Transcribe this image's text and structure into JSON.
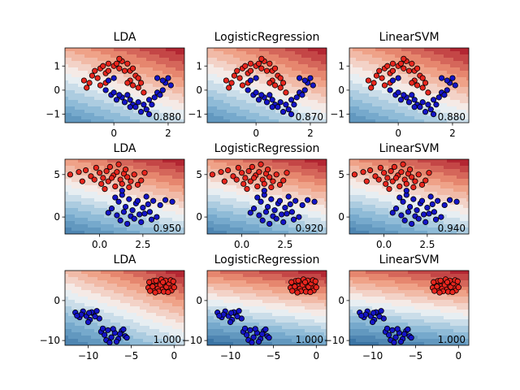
{
  "chart_data": [
    {
      "type": "contour-scatter",
      "row": 0,
      "col": 0,
      "title": "LDA",
      "score": "0.880",
      "xlim": [
        -1.8,
        2.6
      ],
      "ylim": [
        -1.35,
        1.75
      ],
      "xticks": [
        0,
        2
      ],
      "xticklabels": [
        "0",
        "2"
      ],
      "yticks": [
        -1,
        0,
        1
      ],
      "yticklabels": [
        "−1",
        "0",
        "1"
      ],
      "boundary": {
        "nx": 0.34,
        "ny": 0.94,
        "c": 0.05
      },
      "class_colors": {
        "red": "#e8261e",
        "blue": "#1414c8"
      }
    },
    {
      "type": "contour-scatter",
      "row": 0,
      "col": 1,
      "title": "LogisticRegression",
      "score": "0.870",
      "xlim": [
        -1.8,
        2.6
      ],
      "ylim": [
        -1.35,
        1.75
      ],
      "xticks": [
        0,
        2
      ],
      "xticklabels": [
        "0",
        "2"
      ],
      "yticks": [
        -1,
        0,
        1
      ],
      "yticklabels": [
        "−1",
        "0",
        "1"
      ],
      "boundary": {
        "nx": 0.36,
        "ny": 0.93,
        "c": 0.05
      },
      "class_colors": {
        "red": "#e8261e",
        "blue": "#1414c8"
      }
    },
    {
      "type": "contour-scatter",
      "row": 0,
      "col": 2,
      "title": "LinearSVM",
      "score": "0.880",
      "xlim": [
        -1.8,
        2.6
      ],
      "ylim": [
        -1.35,
        1.75
      ],
      "xticks": [
        0,
        2
      ],
      "xticklabels": [
        "0",
        "2"
      ],
      "yticks": [
        -1,
        0,
        1
      ],
      "yticklabels": [
        "−1",
        "0",
        "1"
      ],
      "boundary": {
        "nx": 0.35,
        "ny": 0.94,
        "c": 0.05
      },
      "class_colors": {
        "red": "#e8261e",
        "blue": "#1414c8"
      }
    },
    {
      "type": "contour-scatter",
      "row": 1,
      "col": 0,
      "title": "LDA",
      "score": "0.950",
      "xlim": [
        -2.0,
        4.9
      ],
      "ylim": [
        -2.0,
        6.8
      ],
      "xticks": [
        0,
        2.5
      ],
      "xticklabels": [
        "0.0",
        "2.5"
      ],
      "yticks": [
        0,
        5
      ],
      "yticklabels": [
        "0",
        "5"
      ],
      "boundary": {
        "nx": 0.45,
        "ny": 0.89,
        "c": 2.4
      },
      "class_colors": {
        "red": "#e8261e",
        "blue": "#1414c8"
      }
    },
    {
      "type": "contour-scatter",
      "row": 1,
      "col": 1,
      "title": "LogisticRegression",
      "score": "0.920",
      "xlim": [
        -2.0,
        4.9
      ],
      "ylim": [
        -2.0,
        6.8
      ],
      "xticks": [
        0,
        2.5
      ],
      "xticklabels": [
        "0.0",
        "2.5"
      ],
      "yticks": [
        0,
        5
      ],
      "yticklabels": [
        "0",
        "5"
      ],
      "boundary": {
        "nx": 0.42,
        "ny": 0.91,
        "c": 2.4
      },
      "class_colors": {
        "red": "#e8261e",
        "blue": "#1414c8"
      }
    },
    {
      "type": "contour-scatter",
      "row": 1,
      "col": 2,
      "title": "LinearSVM",
      "score": "0.940",
      "xlim": [
        -2.0,
        4.9
      ],
      "ylim": [
        -2.0,
        6.8
      ],
      "xticks": [
        0,
        2.5
      ],
      "xticklabels": [
        "0.0",
        "2.5"
      ],
      "yticks": [
        0,
        5
      ],
      "yticklabels": [
        "0",
        "5"
      ],
      "boundary": {
        "nx": 0.44,
        "ny": 0.9,
        "c": 2.4
      },
      "class_colors": {
        "red": "#e8261e",
        "blue": "#1414c8"
      }
    },
    {
      "type": "contour-scatter",
      "row": 2,
      "col": 0,
      "title": "LDA",
      "score": "1.000",
      "xlim": [
        -12.7,
        1.2
      ],
      "ylim": [
        -11.2,
        7.5
      ],
      "xticks": [
        -10,
        -5,
        0
      ],
      "xticklabels": [
        "−10",
        "−5",
        "0"
      ],
      "yticks": [
        -10,
        0
      ],
      "yticklabels": [
        "−10",
        "0"
      ],
      "boundary": {
        "nx": 0.6,
        "ny": 0.8,
        "c": -5.5
      },
      "class_colors": {
        "red": "#e8261e",
        "blue": "#1414c8"
      }
    },
    {
      "type": "contour-scatter",
      "row": 2,
      "col": 1,
      "title": "LogisticRegression",
      "score": "1.000",
      "xlim": [
        -12.7,
        1.2
      ],
      "ylim": [
        -11.2,
        7.5
      ],
      "xticks": [
        -10,
        -5,
        0
      ],
      "xticklabels": [
        "−10",
        "−5",
        "0"
      ],
      "yticks": [
        -10,
        0
      ],
      "yticklabels": [
        "−10",
        "0"
      ],
      "boundary": {
        "nx": 0.3,
        "ny": 0.95,
        "c": -3.5
      },
      "class_colors": {
        "red": "#e8261e",
        "blue": "#1414c8"
      }
    },
    {
      "type": "contour-scatter",
      "row": 2,
      "col": 2,
      "title": "LinearSVM",
      "score": "1.000",
      "xlim": [
        -12.7,
        1.2
      ],
      "ylim": [
        -11.2,
        7.5
      ],
      "xticks": [
        -10,
        -5,
        0
      ],
      "xticklabels": [
        "−10",
        "−5",
        "0"
      ],
      "yticks": [
        -10,
        0
      ],
      "yticklabels": [
        "−10",
        "0"
      ],
      "boundary": {
        "nx": 0.28,
        "ny": 0.96,
        "c": -3.2
      },
      "class_colors": {
        "red": "#e8261e",
        "blue": "#1414c8"
      }
    }
  ],
  "datasets": [
    {
      "red": [
        [
          -1.1,
          0.4
        ],
        [
          -0.9,
          0.3
        ],
        [
          -0.8,
          0.6
        ],
        [
          -0.7,
          0.8
        ],
        [
          -0.5,
          0.9
        ],
        [
          -0.4,
          1.0
        ],
        [
          -0.3,
          0.7
        ],
        [
          -0.2,
          1.1
        ],
        [
          0.0,
          1.0
        ],
        [
          0.1,
          1.1
        ],
        [
          0.2,
          0.9
        ],
        [
          0.3,
          1.2
        ],
        [
          0.5,
          1.1
        ],
        [
          0.6,
          0.8
        ],
        [
          0.7,
          0.9
        ],
        [
          0.8,
          0.6
        ],
        [
          0.9,
          0.5
        ],
        [
          1.0,
          0.3
        ],
        [
          0.9,
          0.1
        ],
        [
          1.1,
          -0.1
        ],
        [
          -0.6,
          0.5
        ],
        [
          -0.2,
          0.8
        ],
        [
          0.4,
          0.8
        ],
        [
          0.6,
          0.4
        ],
        [
          0.7,
          0.2
        ],
        [
          0.2,
          1.3
        ],
        [
          -1.0,
          0.1
        ],
        [
          0.5,
          0.3
        ],
        [
          -0.5,
          0.2
        ],
        [
          -0.3,
          0.3
        ]
      ],
      "blue": [
        [
          -0.3,
          0.0
        ],
        [
          -0.1,
          -0.2
        ],
        [
          0.0,
          -0.1
        ],
        [
          0.1,
          -0.4
        ],
        [
          0.3,
          -0.3
        ],
        [
          0.4,
          -0.5
        ],
        [
          0.6,
          -0.4
        ],
        [
          0.7,
          -0.6
        ],
        [
          0.9,
          -0.5
        ],
        [
          1.1,
          -0.6
        ],
        [
          1.3,
          -0.4
        ],
        [
          1.5,
          -0.3
        ],
        [
          1.6,
          -0.1
        ],
        [
          1.8,
          0.0
        ],
        [
          1.9,
          0.3
        ],
        [
          2.0,
          0.5
        ],
        [
          1.8,
          0.4
        ],
        [
          1.7,
          -0.2
        ],
        [
          1.4,
          -0.6
        ],
        [
          1.2,
          -0.8
        ],
        [
          0.8,
          -0.7
        ],
        [
          0.2,
          -0.2
        ],
        [
          0.5,
          -0.2
        ],
        [
          -0.2,
          0.4
        ],
        [
          0.0,
          0.5
        ],
        [
          1.6,
          0.5
        ],
        [
          2.1,
          0.2
        ],
        [
          1.0,
          -0.9
        ],
        [
          1.3,
          -1.0
        ],
        [
          0.6,
          -0.7
        ]
      ]
    },
    {
      "red": [
        [
          -1.7,
          5.0
        ],
        [
          -1.2,
          5.3
        ],
        [
          -0.8,
          5.5
        ],
        [
          -0.5,
          4.8
        ],
        [
          -0.2,
          5.8
        ],
        [
          0.0,
          5.2
        ],
        [
          0.2,
          4.6
        ],
        [
          0.4,
          5.4
        ],
        [
          0.6,
          5.9
        ],
        [
          0.8,
          4.9
        ],
        [
          1.0,
          5.3
        ],
        [
          1.2,
          4.4
        ],
        [
          1.4,
          5.1
        ],
        [
          1.6,
          4.7
        ],
        [
          1.8,
          4.2
        ],
        [
          2.0,
          5.0
        ],
        [
          2.2,
          3.8
        ],
        [
          0.1,
          3.9
        ],
        [
          0.5,
          4.2
        ],
        [
          0.9,
          3.6
        ],
        [
          1.3,
          3.9
        ],
        [
          -0.3,
          4.4
        ],
        [
          1.7,
          3.5
        ],
        [
          2.4,
          4.3
        ],
        [
          0.7,
          4.6
        ],
        [
          0.3,
          3.3
        ],
        [
          1.1,
          6.2
        ],
        [
          1.5,
          5.6
        ],
        [
          -1.0,
          4.2
        ],
        [
          2.6,
          5.2
        ]
      ],
      "blue": [
        [
          0.9,
          2.3
        ],
        [
          1.1,
          1.8
        ],
        [
          1.3,
          2.6
        ],
        [
          1.5,
          1.2
        ],
        [
          1.7,
          2.1
        ],
        [
          1.9,
          0.8
        ],
        [
          2.1,
          1.6
        ],
        [
          2.3,
          0.3
        ],
        [
          2.5,
          1.1
        ],
        [
          2.7,
          2.4
        ],
        [
          2.9,
          0.6
        ],
        [
          3.1,
          1.9
        ],
        [
          3.3,
          0.0
        ],
        [
          3.5,
          1.4
        ],
        [
          0.7,
          1.0
        ],
        [
          1.0,
          0.2
        ],
        [
          1.2,
          -0.4
        ],
        [
          1.4,
          0.6
        ],
        [
          1.6,
          -0.8
        ],
        [
          1.8,
          0.1
        ],
        [
          2.0,
          -0.2
        ],
        [
          2.2,
          1.9
        ],
        [
          2.4,
          -0.6
        ],
        [
          2.6,
          0.4
        ],
        [
          2.8,
          1.5
        ],
        [
          3.0,
          -0.3
        ],
        [
          0.5,
          0.5
        ],
        [
          3.8,
          2.0
        ],
        [
          4.2,
          1.8
        ],
        [
          1.3,
          3.1
        ]
      ]
    },
    {
      "red": [
        [
          -3.0,
          3.2
        ],
        [
          -2.6,
          4.1
        ],
        [
          -2.3,
          2.8
        ],
        [
          -2.0,
          3.6
        ],
        [
          -1.7,
          4.5
        ],
        [
          -1.4,
          2.9
        ],
        [
          -1.1,
          3.8
        ],
        [
          -0.8,
          4.7
        ],
        [
          -0.5,
          3.1
        ],
        [
          -0.2,
          4.0
        ],
        [
          -2.8,
          2.4
        ],
        [
          -2.4,
          4.9
        ],
        [
          -1.9,
          3.0
        ],
        [
          -1.5,
          5.3
        ],
        [
          -1.2,
          2.2
        ],
        [
          -0.9,
          3.4
        ],
        [
          -0.6,
          4.3
        ],
        [
          -0.3,
          2.5
        ],
        [
          -2.1,
          5.0
        ],
        [
          -1.6,
          3.9
        ],
        [
          -1.0,
          5.0
        ],
        [
          -0.4,
          5.1
        ],
        [
          -2.5,
          3.5
        ],
        [
          -0.7,
          2.1
        ],
        [
          -1.8,
          2.3
        ],
        [
          0.0,
          3.3
        ],
        [
          -2.9,
          4.6
        ],
        [
          -1.3,
          4.6
        ],
        [
          -2.2,
          2.0
        ],
        [
          -0.1,
          4.8
        ]
      ],
      "blue": [
        [
          -11.5,
          -3.0
        ],
        [
          -11.0,
          -4.2
        ],
        [
          -10.6,
          -2.7
        ],
        [
          -10.2,
          -3.9
        ],
        [
          -9.8,
          -4.8
        ],
        [
          -9.4,
          -3.3
        ],
        [
          -9.0,
          -2.6
        ],
        [
          -8.7,
          -4.5
        ],
        [
          -10.8,
          -3.5
        ],
        [
          -10.0,
          -5.4
        ],
        [
          -9.6,
          -2.9
        ],
        [
          -9.2,
          -4.0
        ],
        [
          -8.5,
          -7.8
        ],
        [
          -8.1,
          -8.6
        ],
        [
          -7.7,
          -7.4
        ],
        [
          -7.3,
          -9.2
        ],
        [
          -6.9,
          -8.1
        ],
        [
          -6.5,
          -9.6
        ],
        [
          -6.1,
          -7.6
        ],
        [
          -5.7,
          -8.9
        ],
        [
          -7.9,
          -9.9
        ],
        [
          -7.1,
          -7.1
        ],
        [
          -6.7,
          -10.3
        ],
        [
          -6.3,
          -8.4
        ],
        [
          -5.9,
          -7.2
        ],
        [
          -5.5,
          -9.3
        ],
        [
          -8.3,
          -7.0
        ],
        [
          -7.5,
          -10.5
        ],
        [
          -11.3,
          -3.8
        ],
        [
          -9.9,
          -3.1
        ]
      ]
    }
  ]
}
